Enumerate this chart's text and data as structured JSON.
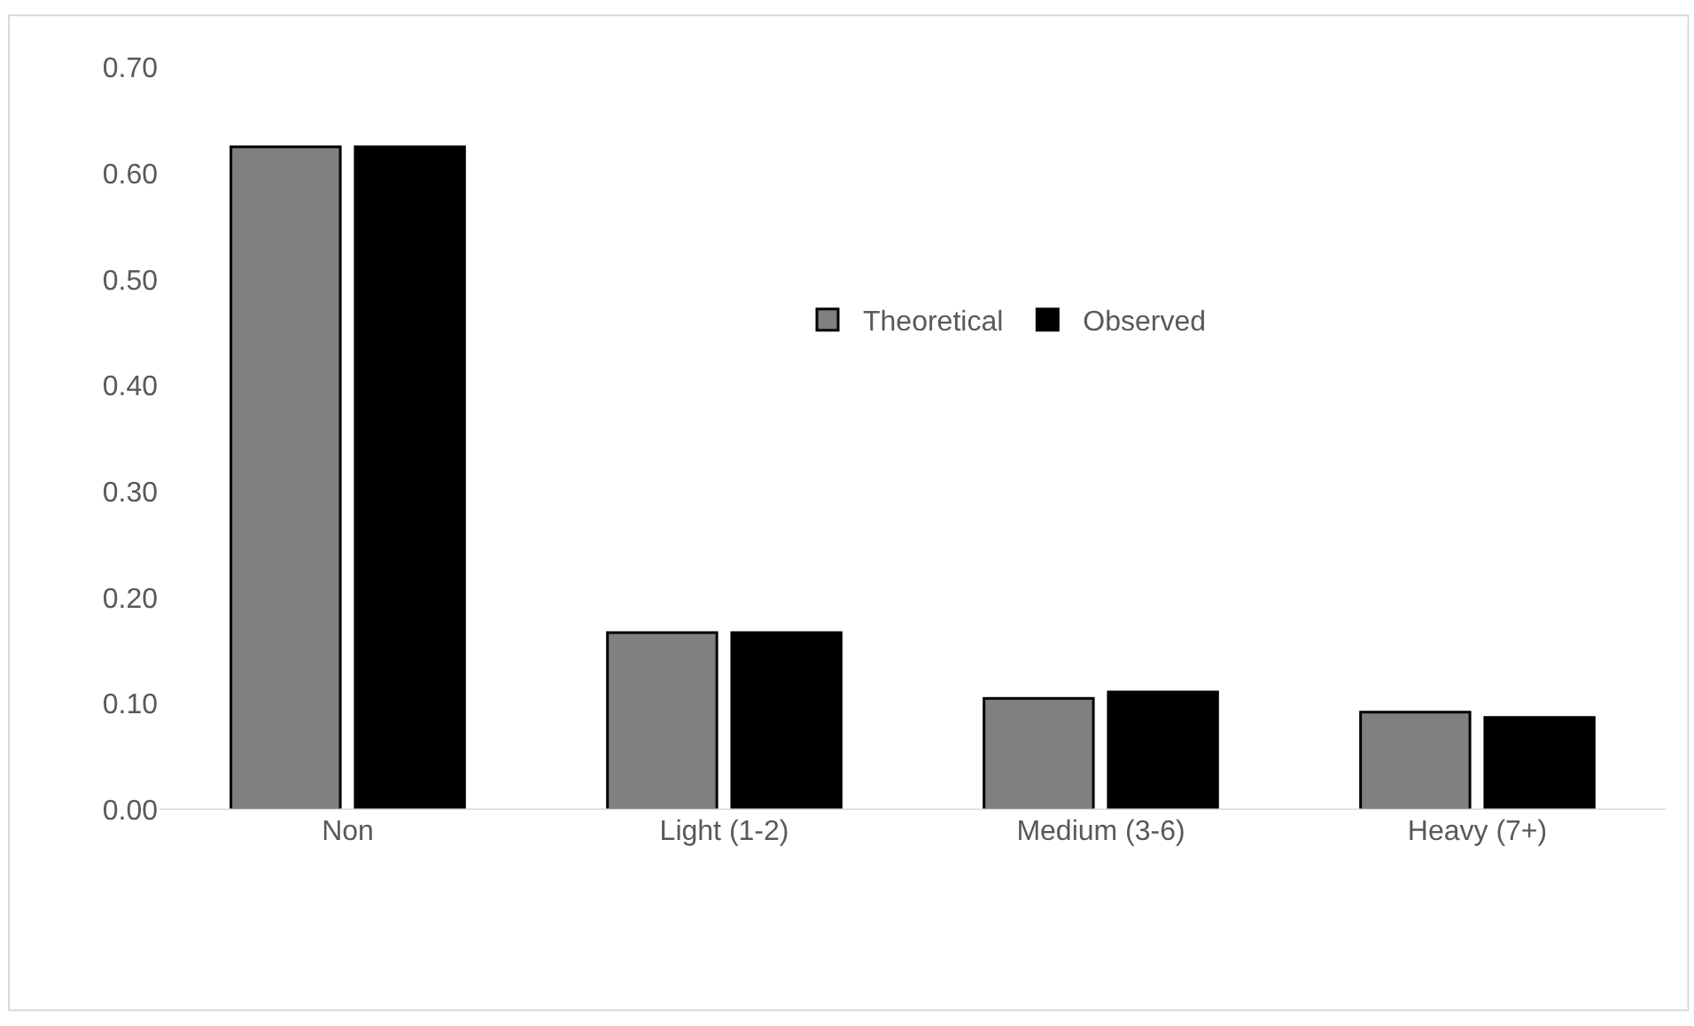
{
  "chart_data": {
    "type": "bar",
    "categories": [
      "Non",
      "Light (1-2)",
      "Medium (3-6)",
      "Heavy (7+)"
    ],
    "series": [
      {
        "name": "Theoretical",
        "color": "#808080",
        "values": [
          0.625,
          0.167,
          0.105,
          0.092
        ]
      },
      {
        "name": "Observed",
        "color": "#000000",
        "values": [
          0.625,
          0.167,
          0.111,
          0.087
        ]
      }
    ],
    "ylim": [
      0,
      0.7
    ],
    "yticks": [
      {
        "value": 0,
        "label": "0.00"
      },
      {
        "value": 0.1,
        "label": "0.10"
      },
      {
        "value": 0.2,
        "label": "0.20"
      },
      {
        "value": 0.3,
        "label": "0.30"
      },
      {
        "value": 0.4,
        "label": "0.40"
      },
      {
        "value": 0.5,
        "label": "0.50"
      },
      {
        "value": 0.6,
        "label": "0.60"
      },
      {
        "value": 0.7,
        "label": "0.70"
      }
    ],
    "grid": false,
    "legend": "top right"
  }
}
